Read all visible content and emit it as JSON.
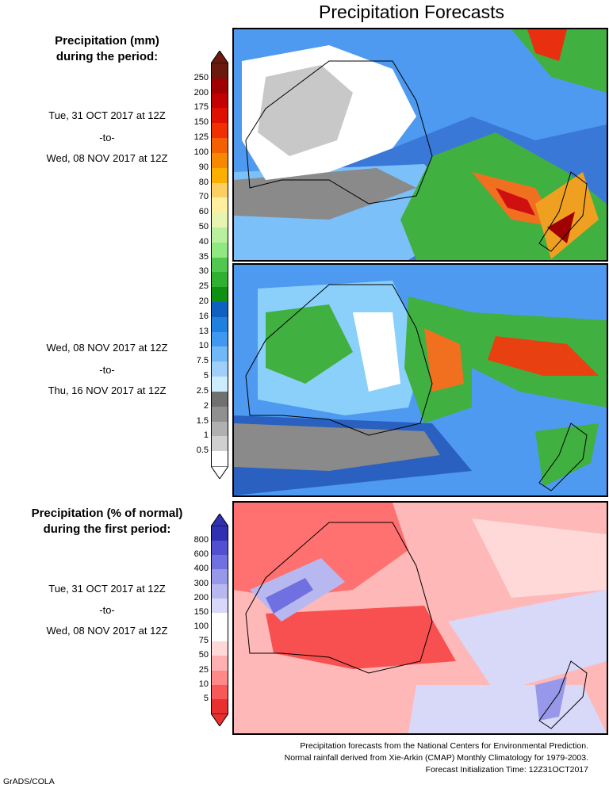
{
  "header": {
    "title": "Precipitation Forecasts"
  },
  "legend_top": {
    "title_line1": "Precipitation (mm)",
    "title_line2": "during the period:"
  },
  "period1": {
    "start": "Tue, 31 OCT 2017 at 12Z",
    "sep": "-to-",
    "end": "Wed, 08 NOV 2017 at 12Z"
  },
  "period2": {
    "start": "Wed, 08 NOV 2017 at 12Z",
    "sep": "-to-",
    "end": "Thu, 16 NOV 2017 at 12Z"
  },
  "legend_bottom": {
    "title_line1": "Precipitation (% of normal)",
    "title_line2": "during the first period:"
  },
  "period3": {
    "start": "Tue, 31 OCT 2017 at 12Z",
    "sep": "-to-",
    "end": "Wed, 08 NOV 2017 at 12Z"
  },
  "colorbar_mm": {
    "labels": [
      "250",
      "200",
      "175",
      "150",
      "125",
      "100",
      "90",
      "80",
      "70",
      "60",
      "50",
      "40",
      "35",
      "30",
      "25",
      "20",
      "16",
      "13",
      "10",
      "7.5",
      "5",
      "2.5",
      "2",
      "1.5",
      "1",
      "0.5"
    ],
    "colors": [
      "#6b1a10",
      "#a00000",
      "#c40000",
      "#e01000",
      "#f03000",
      "#f46000",
      "#f88800",
      "#fbb000",
      "#fcd060",
      "#fff0a0",
      "#e8f5b0",
      "#b8f0a0",
      "#90e880",
      "#50c850",
      "#30b030",
      "#109010",
      "#1060c0",
      "#2080e0",
      "#4098f0",
      "#70b8f8",
      "#a0d0fa",
      "#ccecff",
      "#707070",
      "#909090",
      "#b0b0b0",
      "#d0d0d0",
      "#ffffff"
    ]
  },
  "colorbar_pct": {
    "labels": [
      "800",
      "600",
      "400",
      "300",
      "200",
      "150",
      "100",
      "75",
      "50",
      "25",
      "10",
      "5"
    ],
    "colors": [
      "#3030b0",
      "#5050d0",
      "#7070e0",
      "#9898ea",
      "#b8b8f0",
      "#d8d8f8",
      "#ffffff",
      "#ffffff",
      "#ffd8d8",
      "#ffb0b0",
      "#ff8888",
      "#f85858",
      "#e83030"
    ]
  },
  "footer": {
    "line1": "Precipitation forecasts from the National Centers for Environmental Prediction.",
    "line2": "Normal rainfall derived from Xie-Arkin (CMAP) Monthly Climatology for 1979-2003.",
    "line3": "Forecast Initialization Time: 12Z31OCT2017"
  },
  "credit": "GrADS/COLA"
}
